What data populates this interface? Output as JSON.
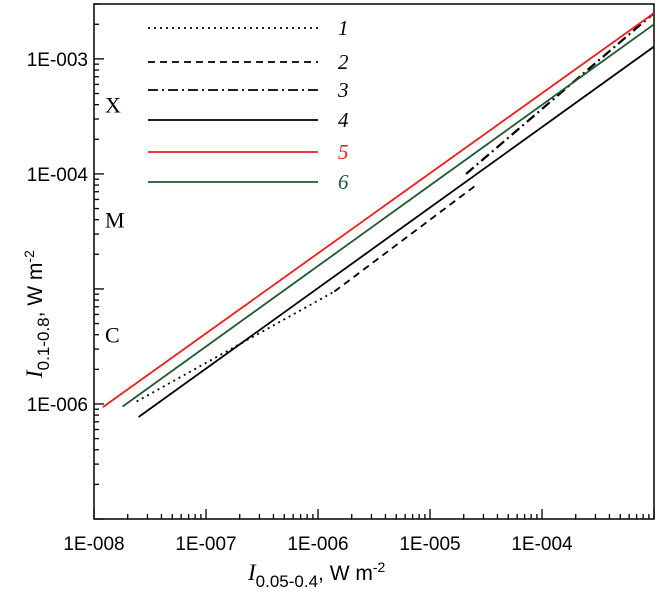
{
  "chart_data": {
    "type": "line",
    "x_scale": "log",
    "y_scale": "log",
    "xlim": [
      1e-08,
      0.001
    ],
    "ylim": [
      1e-07,
      0.003
    ],
    "xlabel": {
      "symbol": "I",
      "subscript": "0.05-0.4",
      "unit": ", W m",
      "power": "-2"
    },
    "ylabel": {
      "symbol": "I",
      "subscript": "0.1-0.8",
      "unit": ", W m",
      "power": "-2"
    },
    "x_tick_labels": [
      {
        "value": 1e-08,
        "label": "1E-008"
      },
      {
        "value": 1e-07,
        "label": "1E-007"
      },
      {
        "value": 1e-06,
        "label": "1E-006"
      },
      {
        "value": 1e-05,
        "label": "1E-005"
      },
      {
        "value": 0.0001,
        "label": "1E-004"
      }
    ],
    "y_tick_labels": [
      {
        "value": 1e-06,
        "label": "1E-006"
      },
      {
        "value": 0.0001,
        "label": "1E-004"
      },
      {
        "value": 0.001,
        "label": "1E-003"
      }
    ],
    "class_labels": [
      {
        "label": "X",
        "y": 0.0004
      },
      {
        "label": "M",
        "y": 4e-05
      },
      {
        "label": "C",
        "y": 4e-06
      }
    ],
    "legend_position": "top-left",
    "series": [
      {
        "name": "1",
        "color": "#000000",
        "dash": "dotted",
        "x": [
          2.4e-08,
          1.4e-06
        ],
        "y": [
          1.05e-06,
          9.5e-06
        ]
      },
      {
        "name": "2",
        "color": "#000000",
        "dash": "dashed",
        "x": [
          1.4e-06,
          2.5e-05
        ],
        "y": [
          9.5e-06,
          7.8e-05
        ]
      },
      {
        "name": "3",
        "color": "#000000",
        "dash": "dashdot",
        "x": [
          2.1e-05,
          0.001
        ],
        "y": [
          0.0001,
          0.0025
        ]
      },
      {
        "name": "4",
        "color": "#000000",
        "dash": "solid",
        "x": [
          2.5e-08,
          0.001
        ],
        "y": [
          7.7e-07,
          0.00128
        ]
      },
      {
        "name": "5",
        "color": "#e8201c",
        "dash": "solid",
        "x": [
          1.2e-08,
          0.001
        ],
        "y": [
          9.4e-07,
          0.0025
        ]
      },
      {
        "name": "6",
        "color": "#1f5a2e",
        "dash": "solid",
        "x": [
          1.8e-08,
          0.001
        ],
        "y": [
          9.5e-07,
          0.002
        ]
      }
    ]
  }
}
